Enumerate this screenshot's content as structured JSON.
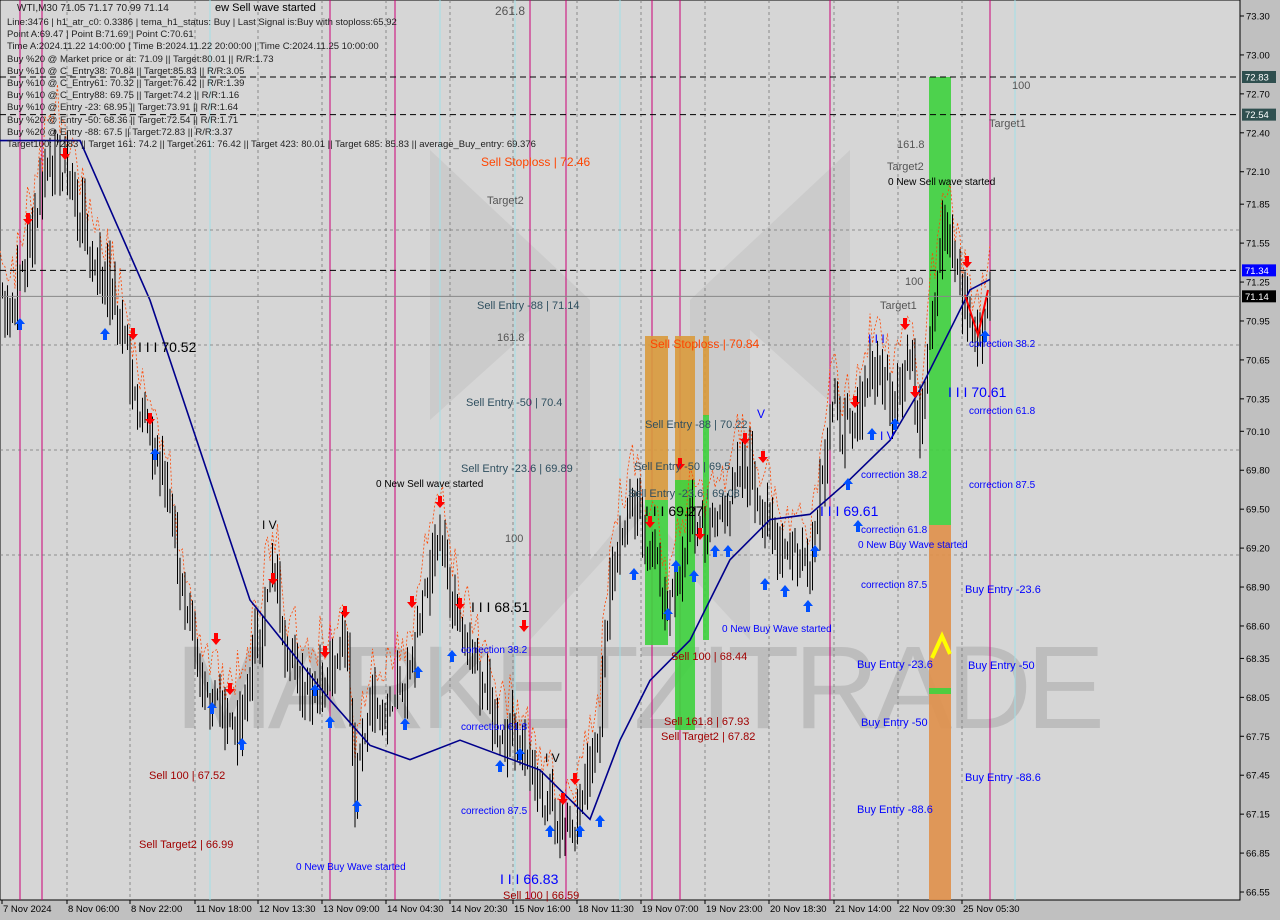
{
  "header": {
    "symbol_line": "WTI,M30  71.05 71.17 70.99 71.14",
    "overlay": "ew Sell wave started",
    "lines": [
      "Line:3476 | h1_atr_c0: 0.3386 | tema_h1_status: Buy | Last Signal is:Buy with stoploss:65.92",
      "Point A:69.47 | Point B:71.69 | Point C:70.61",
      "Time A:2024.11.22 14:00:00 | Time B:2024.11.22 20:00:00 | Time C:2024.11.25 10:00:00",
      "Buy %20 @ Market price or at: 71.09 || Target:80.01 || R/R:1.73",
      "Buy %10 @ C_Entry38: 70.84 || Target:85.83 || R/R:3.05",
      "Buy %10 @ C_Entry61: 70.32 || Target:76.42 || R/R:1.39",
      "Buy %10 @ C_Entry88: 69.75 || Target:74.2 || R/R:1.16",
      "Buy %10 @ Entry -23: 68.95 || Target:73.91 || R/R:1.64",
      "Buy %20 @ Entry -50: 68.36 || Target:72.54 || R/R:1.71",
      "Buy %20 @ Entry -88: 67.5 || Target:72.83 || R/R:3.37",
      "Target100: 72.83 || Target 161: 74.2 || Target 261: 76.42 || Target 423: 80.01 || Target 685: 85.83 || average_Buy_entry: 69.376"
    ]
  },
  "watermark": "MARKETZITRADE",
  "chart_data": {
    "type": "candlestick",
    "symbol": "WTI",
    "timeframe": "M30",
    "ylim": [
      66.55,
      73.45
    ],
    "y_ticks": [
      "73.30",
      "73.00",
      "72.70",
      "72.40",
      "72.10",
      "71.85",
      "71.55",
      "71.25",
      "70.95",
      "70.65",
      "70.35",
      "70.10",
      "69.80",
      "69.50",
      "69.20",
      "68.90",
      "68.60",
      "68.35",
      "68.05",
      "67.75",
      "67.45",
      "67.15",
      "66.85",
      "66.55"
    ],
    "x_ticks": [
      "7 Nov 2024",
      "8 Nov 06:00",
      "8 Nov 22:00",
      "11 Nov 18:00",
      "12 Nov 13:30",
      "13 Nov 09:00",
      "14 Nov 04:30",
      "14 Nov 20:30",
      "15 Nov 16:00",
      "18 Nov 11:30",
      "19 Nov 07:00",
      "19 Nov 23:00",
      "20 Nov 18:30",
      "21 Nov 14:00",
      "22 Nov 09:30",
      "25 Nov 05:30"
    ],
    "close_path": [
      [
        4,
        71.0
      ],
      [
        12,
        71.6
      ],
      [
        20,
        72.3
      ],
      [
        28,
        72.0
      ],
      [
        36,
        71.5
      ],
      [
        44,
        71.2
      ],
      [
        52,
        70.6
      ],
      [
        60,
        70.0
      ],
      [
        68,
        69.6
      ],
      [
        74,
        68.6
      ],
      [
        80,
        68.2
      ],
      [
        86,
        68.0
      ],
      [
        96,
        67.8
      ],
      [
        104,
        68.6
      ],
      [
        110,
        69.0
      ],
      [
        116,
        68.3
      ],
      [
        124,
        68.1
      ],
      [
        132,
        68.3
      ],
      [
        138,
        68.6
      ],
      [
        142,
        67.3
      ],
      [
        148,
        68.1
      ],
      [
        156,
        68.0
      ],
      [
        164,
        68.2
      ],
      [
        172,
        69.0
      ],
      [
        176,
        69.2
      ],
      [
        184,
        68.5
      ],
      [
        192,
        68.2
      ],
      [
        200,
        67.8
      ],
      [
        208,
        67.7
      ],
      [
        216,
        67.3
      ],
      [
        224,
        67.1
      ],
      [
        232,
        67.2
      ],
      [
        240,
        67.9
      ],
      [
        244,
        69.0
      ],
      [
        252,
        69.5
      ],
      [
        260,
        69.2
      ],
      [
        268,
        68.7
      ],
      [
        276,
        69.4
      ],
      [
        284,
        69.3
      ],
      [
        292,
        69.6
      ],
      [
        300,
        69.8
      ],
      [
        308,
        69.3
      ],
      [
        316,
        69.2
      ],
      [
        324,
        69.1
      ],
      [
        332,
        70.3
      ],
      [
        340,
        70.0
      ],
      [
        348,
        70.6
      ],
      [
        356,
        70.4
      ],
      [
        364,
        70.7
      ],
      [
        368,
        70.2
      ],
      [
        372,
        71.0
      ],
      [
        378,
        71.7
      ],
      [
        384,
        71.2
      ],
      [
        390,
        70.8
      ],
      [
        396,
        71.14
      ]
    ],
    "moving_average": [
      [
        0,
        72.34
      ],
      [
        32,
        72.34
      ],
      [
        60,
        71.11
      ],
      [
        100,
        68.8
      ],
      [
        132,
        68.03
      ],
      [
        148,
        67.68
      ],
      [
        164,
        67.57
      ],
      [
        184,
        67.72
      ],
      [
        216,
        67.49
      ],
      [
        236,
        67.11
      ],
      [
        248,
        67.72
      ],
      [
        260,
        68.18
      ],
      [
        276,
        68.49
      ],
      [
        292,
        69.11
      ],
      [
        308,
        69.42
      ],
      [
        324,
        69.46
      ],
      [
        340,
        69.73
      ],
      [
        356,
        70.03
      ],
      [
        368,
        70.42
      ],
      [
        380,
        70.88
      ],
      [
        388,
        71.19
      ],
      [
        396,
        71.27
      ]
    ],
    "levels": [
      {
        "price": 72.83,
        "label": "72.83",
        "style": "dashed",
        "color": "#2f4f4f"
      },
      {
        "price": 72.54,
        "label": "72.54",
        "style": "dashed",
        "color": "#2f4f4f"
      },
      {
        "price": 71.34,
        "label": "71.34",
        "style": "dashed",
        "color": "#0000ff"
      },
      {
        "price": 71.14,
        "label": "71.14",
        "style": "solid",
        "color": "#000000"
      }
    ],
    "annotations": [
      "261.8",
      "Sell Stoploss | 72.46",
      "Target2",
      "Sell Entry -88 | 71.14",
      "161.8",
      "Sell Entry -50 | 70.4",
      "Sell Entry -23.6 | 69.89",
      "0 New Sell wave started",
      "100",
      "I I I 68.51",
      "correction 38.2",
      "correction 61.8",
      "correction 87.5",
      "I V",
      "I I I 66.83",
      "Sell 100 | 66.59",
      "Sell 100 | 67.52",
      "Sell Target2 | 66.99",
      "0 New Buy Wave started",
      "I I I 70.52",
      "I V",
      "Sell Stoploss | 70.84",
      "Sell Entry -88 | 70.22",
      "Sell Entry -50 | 69.5",
      "Sell Entry -23.6 | 69.08",
      "I I I 69.27",
      "0 New Buy Wave started",
      "Sell 100 | 68.44",
      "Sell 161.8 | 67.93",
      "Sell Target2 | 67.82",
      "V",
      "I I I 69.61",
      "correction 38.2",
      "correction 61.8",
      "0 New Buy Wave started",
      "correction 87.5",
      "Buy Entry -23.6",
      "Buy Entry -50",
      "Buy Entry -88.6",
      "I I I",
      "I V",
      "Target1",
      "161.8",
      "Target2",
      "0 New Sell wave started",
      "100",
      "I I I 70.61",
      "correction 38.2",
      "correction 61.8",
      "correction 87.5",
      "Buy Entry -23.6",
      "Buy Entry -50",
      "Buy Entry -88.6",
      "100",
      "Target1"
    ],
    "colors": {
      "background": "#d6d6d6",
      "candles": "#000000",
      "ma": "#00008b",
      "envelope": "#ff4500",
      "zone_green": "#32cd32",
      "zone_orange": "#e0904a",
      "buy_arrow": "#0050ff",
      "sell_arrow": "#ff0000"
    }
  }
}
